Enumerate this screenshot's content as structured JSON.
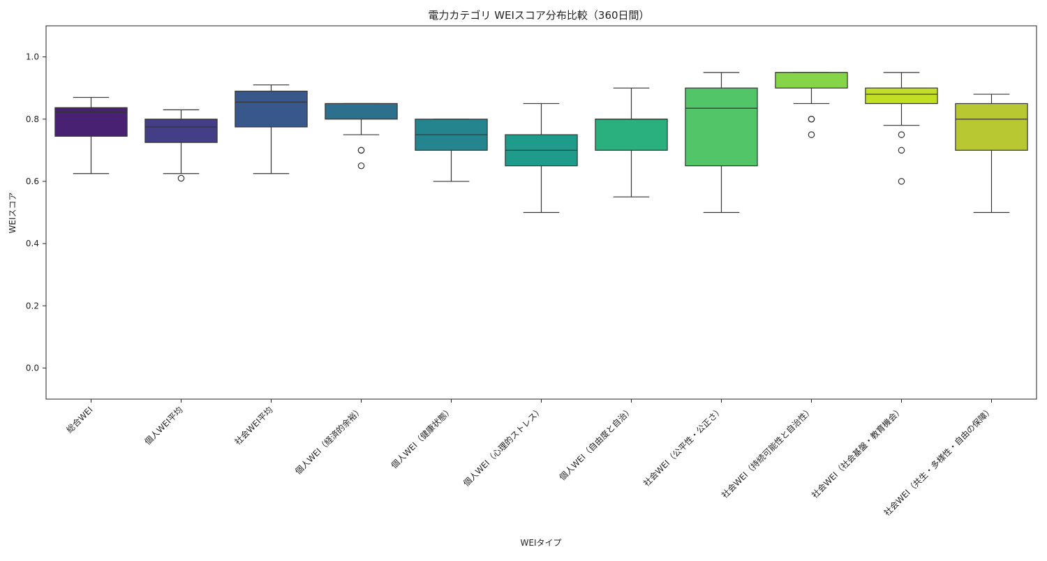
{
  "chart_data": {
    "type": "box",
    "title": "電力カテゴリ WEIスコア分布比較（360日間）",
    "xlabel": "WEIタイプ",
    "ylabel": "WEIスコア",
    "ylim": [
      -0.1,
      1.1
    ],
    "yticks": [
      "0.0",
      "0.2",
      "0.4",
      "0.6",
      "0.8",
      "1.0"
    ],
    "ytick_values": [
      0.0,
      0.2,
      0.4,
      0.6,
      0.8,
      1.0
    ],
    "grid": false,
    "legend": "none",
    "categories": [
      "総合WEI",
      "個人WEI平均",
      "社会WEI平均",
      "個人WEI（経済的余裕）",
      "個人WEI（健康状態）",
      "個人WEI（心理的ストレス）",
      "個人WEI（自由度と自治）",
      "社会WEI（公平性・公正さ）",
      "社会WEI（持続可能性と自治性）",
      "社会WEI（社会基盤・教育機会）",
      "社会WEI（共生・多様性・自由の保障）"
    ],
    "colors": [
      "#482173",
      "#433e85",
      "#38588c",
      "#2d708e",
      "#25858e",
      "#1e9b8a",
      "#2ab07f",
      "#52c569",
      "#86d549",
      "#c2df23",
      "#b8c832"
    ],
    "boxes": [
      {
        "whisker_low": 0.625,
        "q1": 0.745,
        "median": 0.823,
        "q3": 0.837,
        "whisker_high": 0.87,
        "outliers": []
      },
      {
        "whisker_low": 0.625,
        "q1": 0.725,
        "median": 0.775,
        "q3": 0.8,
        "whisker_high": 0.83,
        "outliers": [
          0.61
        ]
      },
      {
        "whisker_low": 0.625,
        "q1": 0.775,
        "median": 0.855,
        "q3": 0.89,
        "whisker_high": 0.91,
        "outliers": []
      },
      {
        "whisker_low": 0.75,
        "q1": 0.8,
        "median": 0.85,
        "q3": 0.85,
        "whisker_high": 0.85,
        "outliers": [
          0.7,
          0.7,
          0.65
        ]
      },
      {
        "whisker_low": 0.6,
        "q1": 0.7,
        "median": 0.75,
        "q3": 0.8,
        "whisker_high": 0.8,
        "outliers": []
      },
      {
        "whisker_low": 0.5,
        "q1": 0.65,
        "median": 0.7,
        "q3": 0.75,
        "whisker_high": 0.85,
        "outliers": []
      },
      {
        "whisker_low": 0.55,
        "q1": 0.7,
        "median": 0.8,
        "q3": 0.8,
        "whisker_high": 0.9,
        "outliers": []
      },
      {
        "whisker_low": 0.5,
        "q1": 0.65,
        "median": 0.835,
        "q3": 0.9,
        "whisker_high": 0.95,
        "outliers": []
      },
      {
        "whisker_low": 0.85,
        "q1": 0.9,
        "median": 0.95,
        "q3": 0.95,
        "whisker_high": 0.95,
        "outliers": [
          0.8,
          0.8,
          0.75
        ]
      },
      {
        "whisker_low": 0.78,
        "q1": 0.85,
        "median": 0.88,
        "q3": 0.9,
        "whisker_high": 0.95,
        "outliers": [
          0.75,
          0.7,
          0.6
        ]
      },
      {
        "whisker_low": 0.5,
        "q1": 0.7,
        "median": 0.8,
        "q3": 0.85,
        "whisker_high": 0.88,
        "outliers": []
      }
    ]
  }
}
